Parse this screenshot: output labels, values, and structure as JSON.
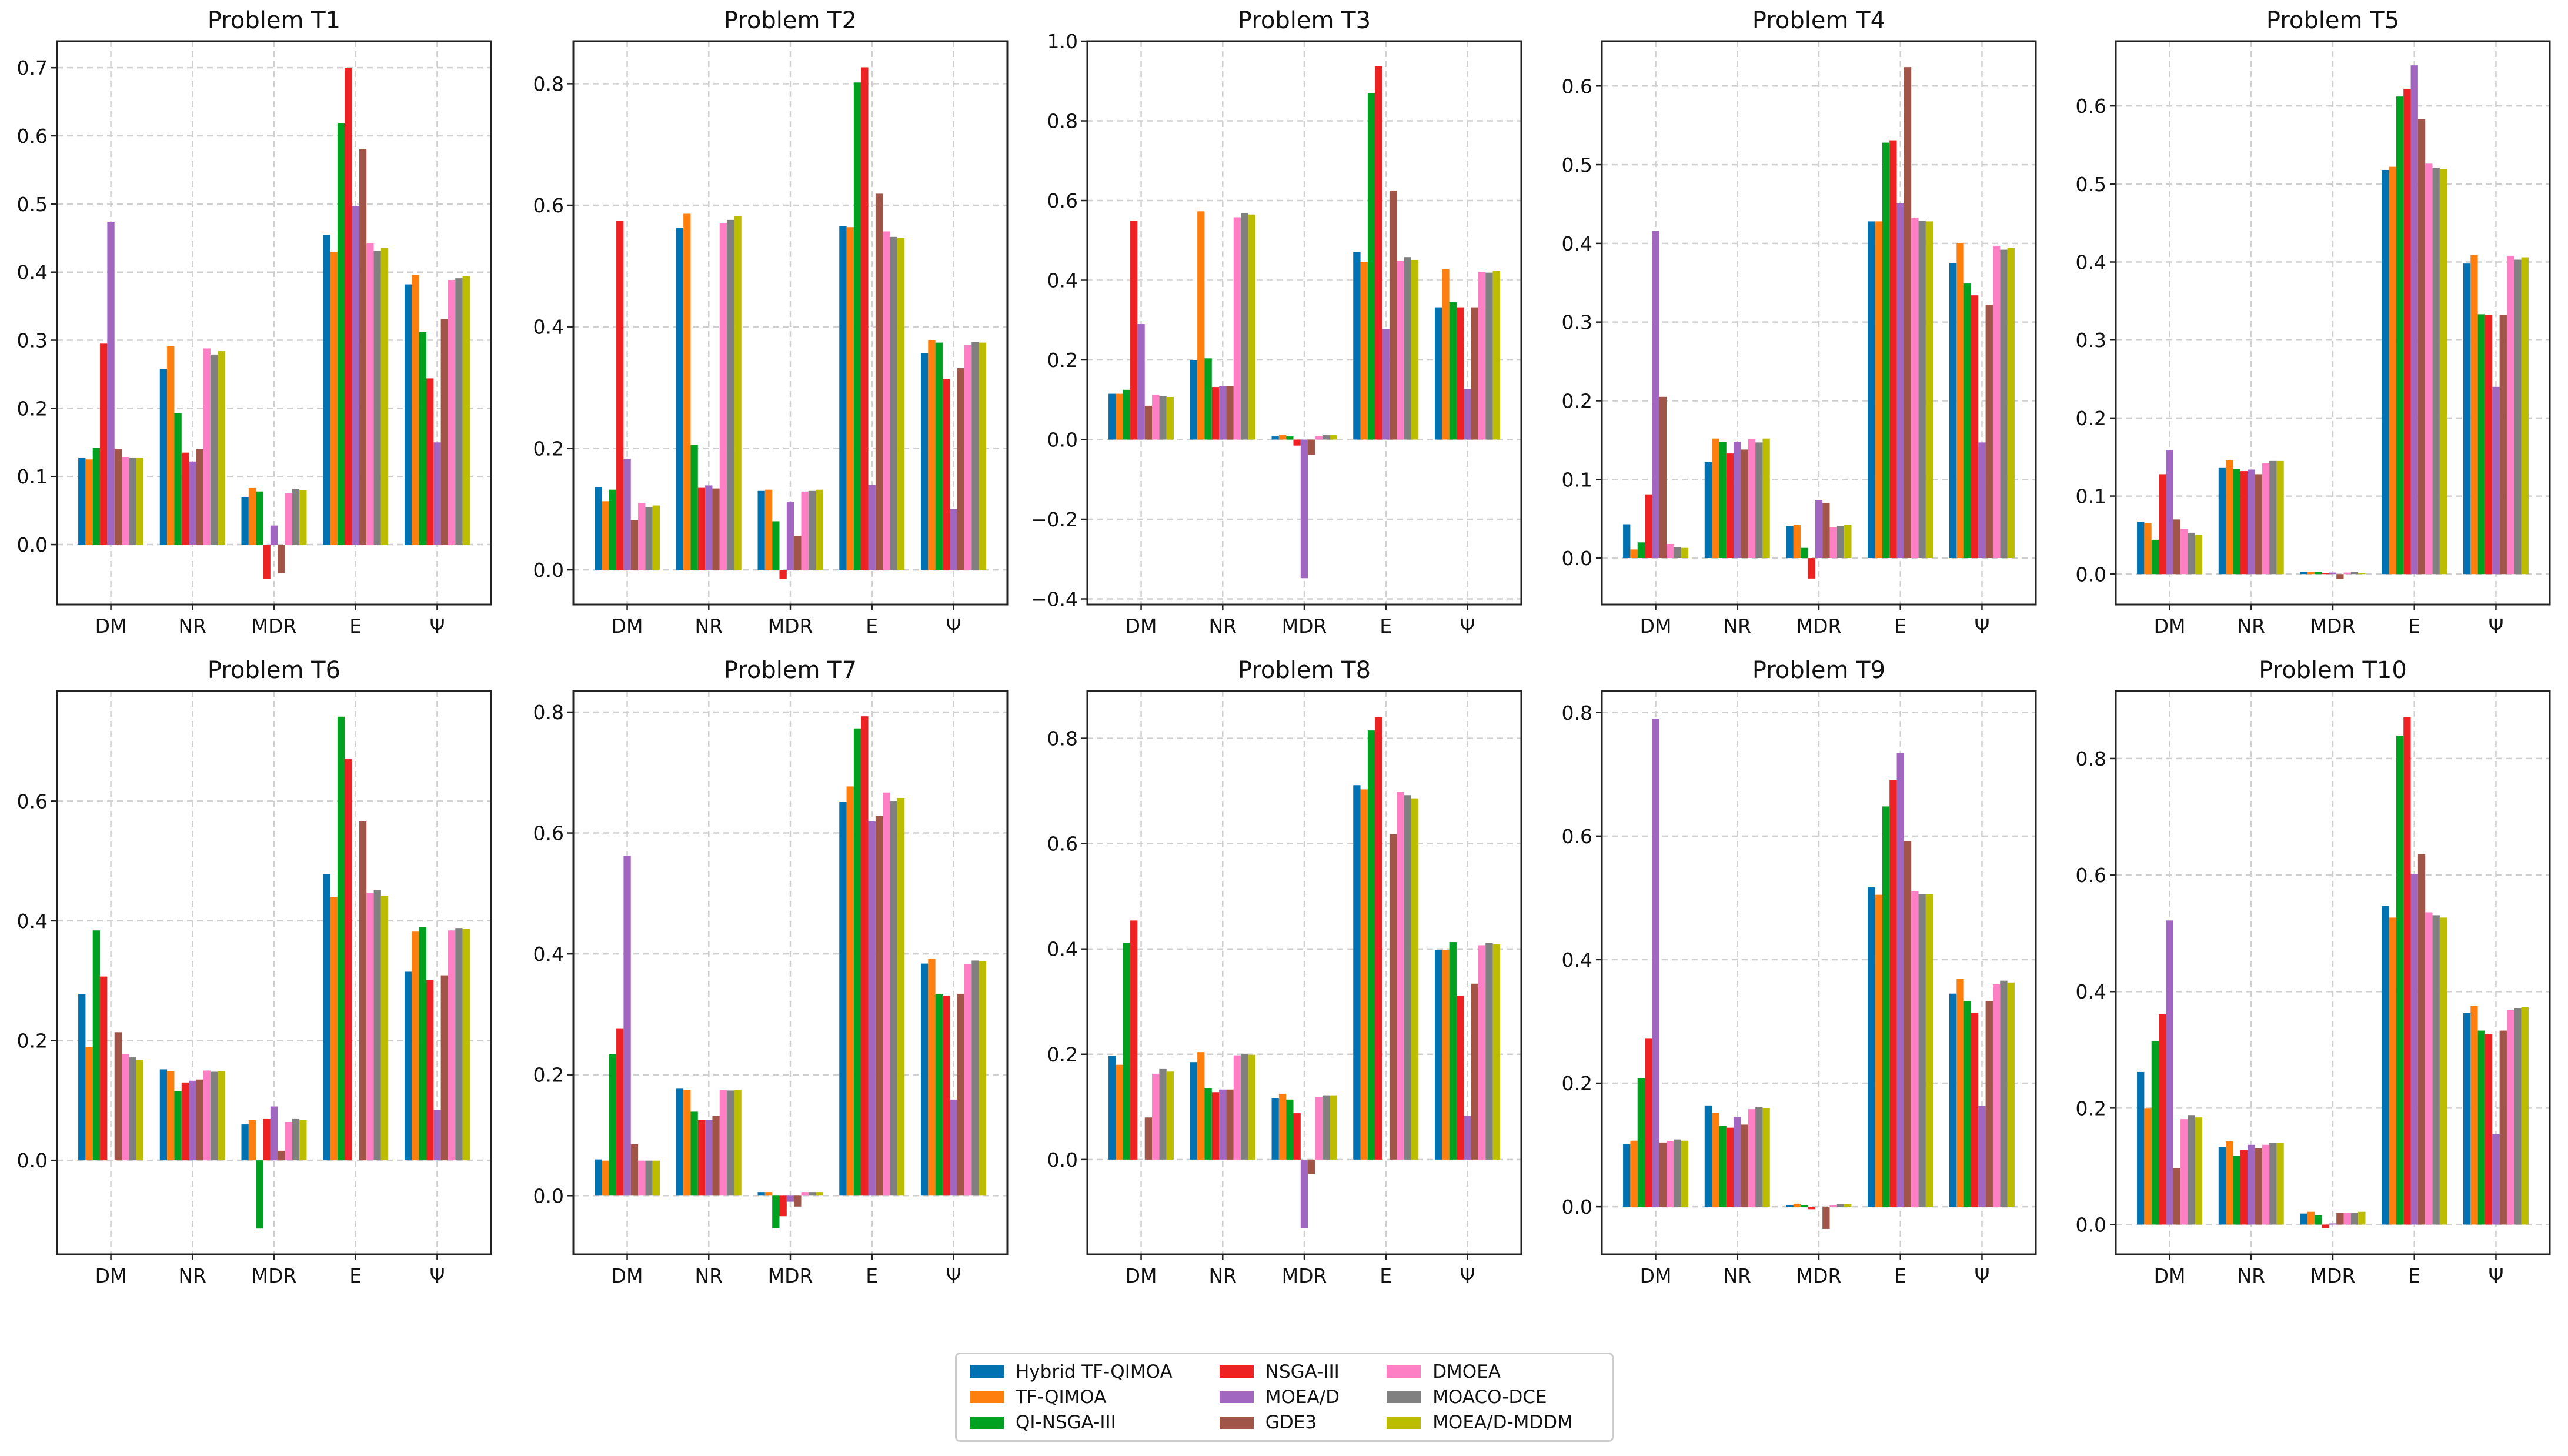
{
  "chart_data": {
    "type": "bar",
    "layout": "2x5 grid of grouped bar subplots",
    "categories": [
      "DM",
      "NR",
      "MDR",
      "E",
      "Ψ"
    ],
    "series_names": [
      "Hybrid TF-QIMOA",
      "TF-QIMOA",
      "QI-NSGA-III",
      "NSGA-III",
      "MOEA/D",
      "GDE3",
      "DMOEA",
      "MOACO-DCE",
      "MOEA/D-MDDM"
    ],
    "series_colors": [
      "#0072b2",
      "#ff7f0e",
      "#00a020",
      "#ee2222",
      "#a066c0",
      "#a05548",
      "#ff7fc4",
      "#808080",
      "#bcbd00"
    ],
    "grid": true,
    "legend_placement": "bottom-center",
    "panels": [
      {
        "title": "Problem T1",
        "ylim": [
          -0.088,
          0.739
        ],
        "yticks": [
          "0.0",
          "0.1",
          "0.2",
          "0.3",
          "0.4",
          "0.5",
          "0.6",
          "0.7"
        ],
        "values": [
          [
            0.127,
            0.125,
            0.142,
            0.295,
            0.474,
            0.14,
            0.128,
            0.127,
            0.127
          ],
          [
            0.258,
            0.291,
            0.193,
            0.135,
            0.122,
            0.14,
            0.288,
            0.279,
            0.284
          ],
          [
            0.07,
            0.083,
            0.078,
            -0.05,
            0.028,
            -0.042,
            0.076,
            0.082,
            0.08
          ],
          [
            0.455,
            0.43,
            0.619,
            0.7,
            0.497,
            0.581,
            0.442,
            0.431,
            0.436
          ],
          [
            0.382,
            0.396,
            0.312,
            0.244,
            0.15,
            0.331,
            0.388,
            0.391,
            0.394
          ]
        ]
      },
      {
        "title": "Problem T2",
        "ylim": [
          -0.057,
          0.87
        ],
        "yticks": [
          "0.0",
          "0.2",
          "0.4",
          "0.6",
          "0.8"
        ],
        "values": [
          [
            0.136,
            0.113,
            0.132,
            0.574,
            0.183,
            0.082,
            0.11,
            0.103,
            0.106
          ],
          [
            0.563,
            0.586,
            0.206,
            0.135,
            0.139,
            0.134,
            0.571,
            0.576,
            0.582
          ],
          [
            0.13,
            0.132,
            0.08,
            -0.015,
            0.112,
            0.056,
            0.129,
            0.13,
            0.132
          ],
          [
            0.566,
            0.564,
            0.802,
            0.827,
            0.14,
            0.619,
            0.557,
            0.548,
            0.546
          ],
          [
            0.357,
            0.378,
            0.374,
            0.314,
            0.1,
            0.332,
            0.37,
            0.375,
            0.374
          ]
        ]
      },
      {
        "title": "Problem T3",
        "ylim": [
          -0.414,
          1.0
        ],
        "yticks": [
          "−0.4",
          "−0.2",
          "0.0",
          "0.2",
          "0.4",
          "0.6",
          "0.8",
          "1.0"
        ],
        "values": [
          [
            0.115,
            0.115,
            0.125,
            0.549,
            0.29,
            0.085,
            0.112,
            0.109,
            0.107
          ],
          [
            0.199,
            0.573,
            0.204,
            0.132,
            0.135,
            0.135,
            0.558,
            0.568,
            0.565
          ],
          [
            0.008,
            0.011,
            0.008,
            -0.015,
            -0.348,
            -0.038,
            0.008,
            0.011,
            0.011
          ],
          [
            0.471,
            0.445,
            0.87,
            0.937,
            0.277,
            0.625,
            0.448,
            0.458,
            0.451
          ],
          [
            0.332,
            0.428,
            0.345,
            0.332,
            0.127,
            0.332,
            0.421,
            0.419,
            0.424
          ]
        ]
      },
      {
        "title": "Problem T4",
        "ylim": [
          -0.059,
          0.657
        ],
        "yticks": [
          "0.0",
          "0.1",
          "0.2",
          "0.3",
          "0.4",
          "0.5",
          "0.6"
        ],
        "values": [
          [
            0.043,
            0.011,
            0.02,
            0.081,
            0.416,
            0.205,
            0.018,
            0.014,
            0.013
          ],
          [
            0.122,
            0.152,
            0.148,
            0.133,
            0.148,
            0.138,
            0.151,
            0.147,
            0.152
          ],
          [
            0.041,
            0.042,
            0.013,
            -0.026,
            0.074,
            0.07,
            0.039,
            0.041,
            0.042
          ],
          [
            0.428,
            0.428,
            0.528,
            0.531,
            0.451,
            0.624,
            0.432,
            0.429,
            0.428
          ],
          [
            0.375,
            0.4,
            0.349,
            0.334,
            0.147,
            0.322,
            0.397,
            0.392,
            0.394
          ]
        ]
      },
      {
        "title": "Problem T5",
        "ylim": [
          -0.039,
          0.683
        ],
        "yticks": [
          "0.0",
          "0.1",
          "0.2",
          "0.3",
          "0.4",
          "0.5",
          "0.6"
        ],
        "values": [
          [
            0.067,
            0.065,
            0.044,
            0.128,
            0.159,
            0.07,
            0.058,
            0.053,
            0.05
          ],
          [
            0.136,
            0.146,
            0.135,
            0.132,
            0.134,
            0.128,
            0.142,
            0.145,
            0.145
          ],
          [
            0.003,
            0.003,
            0.003,
            0.001,
            0.002,
            -0.006,
            0.002,
            0.003,
            0.001
          ],
          [
            0.518,
            0.522,
            0.612,
            0.622,
            0.652,
            0.583,
            0.526,
            0.521,
            0.519
          ],
          [
            0.398,
            0.409,
            0.333,
            0.332,
            0.24,
            0.332,
            0.408,
            0.403,
            0.406
          ]
        ]
      },
      {
        "title": "Problem T6",
        "ylim": [
          -0.157,
          0.784
        ],
        "yticks": [
          "0.0",
          "0.2",
          "0.4",
          "0.6"
        ],
        "values": [
          [
            0.278,
            0.189,
            0.384,
            0.307,
            0.0,
            0.214,
            0.178,
            0.172,
            0.168
          ],
          [
            0.152,
            0.149,
            0.116,
            0.13,
            0.133,
            0.135,
            0.15,
            0.148,
            0.149
          ],
          [
            0.06,
            0.067,
            -0.114,
            0.069,
            0.09,
            0.016,
            0.064,
            0.069,
            0.067
          ],
          [
            0.478,
            0.44,
            0.741,
            0.67,
            0.0,
            0.566,
            0.447,
            0.452,
            0.442
          ],
          [
            0.315,
            0.382,
            0.39,
            0.301,
            0.084,
            0.309,
            0.384,
            0.388,
            0.387
          ]
        ]
      },
      {
        "title": "Problem T7",
        "ylim": [
          -0.097,
          0.835
        ],
        "yticks": [
          "0.0",
          "0.2",
          "0.4",
          "0.6",
          "0.8"
        ],
        "values": [
          [
            0.06,
            0.058,
            0.234,
            0.276,
            0.562,
            0.085,
            0.058,
            0.058,
            0.058
          ],
          [
            0.177,
            0.175,
            0.139,
            0.125,
            0.125,
            0.132,
            0.175,
            0.174,
            0.175
          ],
          [
            0.006,
            0.006,
            -0.054,
            -0.034,
            -0.01,
            -0.018,
            0.006,
            0.006,
            0.006
          ],
          [
            0.652,
            0.677,
            0.773,
            0.793,
            0.619,
            0.628,
            0.667,
            0.653,
            0.658
          ],
          [
            0.384,
            0.392,
            0.334,
            0.331,
            0.159,
            0.334,
            0.383,
            0.389,
            0.388
          ]
        ]
      },
      {
        "title": "Problem T8",
        "ylim": [
          -0.18,
          0.89
        ],
        "yticks": [
          "0.0",
          "0.2",
          "0.4",
          "0.6",
          "0.8"
        ],
        "values": [
          [
            0.197,
            0.18,
            0.411,
            0.454,
            0.0,
            0.08,
            0.163,
            0.172,
            0.167
          ],
          [
            0.185,
            0.204,
            0.135,
            0.128,
            0.133,
            0.133,
            0.198,
            0.201,
            0.199
          ],
          [
            0.116,
            0.125,
            0.114,
            0.088,
            -0.13,
            -0.028,
            0.119,
            0.122,
            0.122
          ],
          [
            0.711,
            0.703,
            0.815,
            0.84,
            0.0,
            0.618,
            0.698,
            0.692,
            0.686
          ],
          [
            0.398,
            0.398,
            0.413,
            0.311,
            0.083,
            0.334,
            0.407,
            0.411,
            0.409
          ]
        ]
      },
      {
        "title": "Problem T9",
        "ylim": [
          -0.077,
          0.835
        ],
        "yticks": [
          "0.0",
          "0.2",
          "0.4",
          "0.6",
          "0.8"
        ],
        "values": [
          [
            0.101,
            0.107,
            0.208,
            0.272,
            0.79,
            0.104,
            0.106,
            0.109,
            0.107
          ],
          [
            0.164,
            0.152,
            0.131,
            0.128,
            0.145,
            0.133,
            0.158,
            0.161,
            0.16
          ],
          [
            0.003,
            0.005,
            0.002,
            -0.004,
            0.0,
            -0.036,
            0.003,
            0.004,
            0.004
          ],
          [
            0.517,
            0.505,
            0.648,
            0.691,
            0.735,
            0.592,
            0.511,
            0.506,
            0.506
          ],
          [
            0.345,
            0.369,
            0.333,
            0.314,
            0.163,
            0.333,
            0.36,
            0.366,
            0.363
          ]
        ]
      },
      {
        "title": "Problem T10",
        "ylim": [
          -0.051,
          0.916
        ],
        "yticks": [
          "0.0",
          "0.2",
          "0.4",
          "0.6",
          "0.8"
        ],
        "values": [
          [
            0.262,
            0.199,
            0.315,
            0.361,
            0.522,
            0.097,
            0.181,
            0.188,
            0.184
          ],
          [
            0.133,
            0.143,
            0.118,
            0.128,
            0.137,
            0.131,
            0.137,
            0.14,
            0.14
          ],
          [
            0.019,
            0.022,
            0.016,
            -0.006,
            0.002,
            0.02,
            0.02,
            0.02,
            0.022
          ],
          [
            0.547,
            0.527,
            0.839,
            0.871,
            0.602,
            0.636,
            0.536,
            0.531,
            0.527
          ],
          [
            0.363,
            0.375,
            0.333,
            0.327,
            0.155,
            0.333,
            0.368,
            0.371,
            0.373
          ]
        ]
      }
    ]
  }
}
